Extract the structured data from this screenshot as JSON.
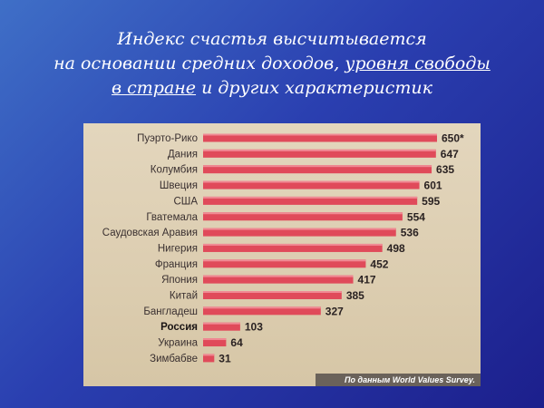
{
  "title": {
    "line1": "Индекс счастья высчитывается",
    "line2a": "на основании средних доходов, ",
    "line2b": "уровня свободы ",
    "line3a": "в стране",
    "line3b": " и других характеристик"
  },
  "chart_data": {
    "type": "bar",
    "orientation": "horizontal",
    "categories": [
      "Пуэрто-Рико",
      "Дания",
      "Колумбия",
      "Швеция",
      "США",
      "Гватемала",
      "Саудовская Аравия",
      "Нигерия",
      "Франция",
      "Япония",
      "Китай",
      "Бангладеш",
      "Россия",
      "Украина",
      "Зимбабве"
    ],
    "values": [
      650,
      647,
      635,
      601,
      595,
      554,
      536,
      498,
      452,
      417,
      385,
      327,
      103,
      64,
      31
    ],
    "value_labels": [
      "650*",
      "647",
      "635",
      "601",
      "595",
      "554",
      "536",
      "498",
      "452",
      "417",
      "385",
      "327",
      "103",
      "64",
      "31"
    ],
    "highlight": "Россия",
    "bar_color": "#e04a5a",
    "source": "По данным World Values Survey."
  }
}
